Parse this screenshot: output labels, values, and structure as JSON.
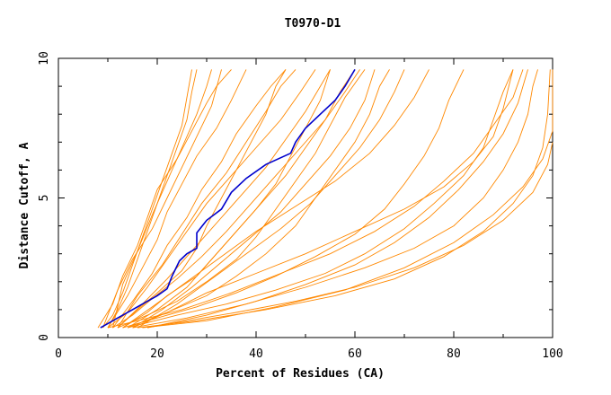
{
  "chart_data": {
    "type": "line",
    "title": "T0970-D1",
    "xlabel": "Percent of Residues (CA)",
    "ylabel": "Distance Cutoff, A",
    "xlim": [
      0,
      100
    ],
    "ylim": [
      0,
      10
    ],
    "x_ticks": [
      "0",
      "20",
      "40",
      "60",
      "80",
      "100"
    ],
    "y_ticks": [
      "0",
      "5",
      "10"
    ],
    "grid": false,
    "colors": {
      "highlight": "#0000cc",
      "others": "#ff8800"
    },
    "highlight": {
      "x": [
        8.5,
        12,
        15,
        18,
        20,
        22,
        23,
        24.5,
        26,
        28,
        28,
        30,
        33,
        35,
        38,
        42,
        47,
        48,
        50,
        53,
        56,
        58,
        60
      ],
      "y": [
        0.35,
        0.7,
        1.0,
        1.3,
        1.5,
        1.75,
        2.2,
        2.75,
        3.0,
        3.2,
        3.75,
        4.2,
        4.6,
        5.2,
        5.7,
        6.2,
        6.6,
        7.0,
        7.5,
        8.0,
        8.5,
        9.0,
        9.6
      ]
    },
    "others": [
      [
        [
          9,
          0.35
        ],
        [
          11,
          0.8
        ],
        [
          13,
          1.6
        ],
        [
          15,
          2.6
        ],
        [
          17,
          3.6
        ],
        [
          19,
          4.6
        ],
        [
          21,
          5.6
        ],
        [
          23,
          6.6
        ],
        [
          25,
          7.6
        ],
        [
          26,
          8.6
        ],
        [
          27,
          9.6
        ]
      ],
      [
        [
          10,
          0.35
        ],
        [
          12,
          1.0
        ],
        [
          14,
          1.8
        ],
        [
          16,
          2.8
        ],
        [
          18,
          3.8
        ],
        [
          20,
          4.8
        ],
        [
          22,
          5.8
        ],
        [
          24,
          6.8
        ],
        [
          26,
          7.8
        ],
        [
          27,
          8.8
        ],
        [
          28,
          9.6
        ]
      ],
      [
        [
          8,
          0.35
        ],
        [
          11,
          1.2
        ],
        [
          13,
          2.2
        ],
        [
          16,
          3.3
        ],
        [
          18,
          4.3
        ],
        [
          20,
          5.3
        ],
        [
          24,
          6.4
        ],
        [
          27,
          7.4
        ],
        [
          30,
          8.4
        ],
        [
          32,
          9.0
        ],
        [
          35,
          9.6
        ]
      ],
      [
        [
          10,
          0.35
        ],
        [
          14,
          1.5
        ],
        [
          17,
          2.5
        ],
        [
          20,
          3.5
        ],
        [
          22,
          4.5
        ],
        [
          25,
          5.5
        ],
        [
          28,
          6.5
        ],
        [
          32,
          7.5
        ],
        [
          35,
          8.5
        ],
        [
          38,
          9.6
        ]
      ],
      [
        [
          12,
          0.35
        ],
        [
          16,
          1.0
        ],
        [
          20,
          1.6
        ],
        [
          25,
          2.4
        ],
        [
          28,
          3.2
        ],
        [
          30,
          4.0
        ],
        [
          33,
          5.0
        ],
        [
          36,
          6.0
        ],
        [
          39,
          7.0
        ],
        [
          42,
          8.0
        ],
        [
          44,
          9.0
        ],
        [
          46,
          9.6
        ]
      ],
      [
        [
          13,
          0.35
        ],
        [
          18,
          0.9
        ],
        [
          22,
          1.5
        ],
        [
          28,
          2.2
        ],
        [
          32,
          3.0
        ],
        [
          36,
          3.8
        ],
        [
          40,
          4.6
        ],
        [
          44,
          5.5
        ],
        [
          47,
          6.5
        ],
        [
          50,
          7.5
        ],
        [
          53,
          8.5
        ],
        [
          55,
          9.6
        ]
      ],
      [
        [
          11,
          0.35
        ],
        [
          15,
          1.3
        ],
        [
          19,
          2.3
        ],
        [
          22,
          3.3
        ],
        [
          26,
          4.3
        ],
        [
          29,
          5.3
        ],
        [
          33,
          6.3
        ],
        [
          36,
          7.3
        ],
        [
          40,
          8.3
        ],
        [
          43,
          9.0
        ],
        [
          46,
          9.6
        ]
      ],
      [
        [
          14,
          0.35
        ],
        [
          20,
          1.0
        ],
        [
          26,
          1.8
        ],
        [
          30,
          2.6
        ],
        [
          34,
          3.4
        ],
        [
          38,
          4.2
        ],
        [
          42,
          5.0
        ],
        [
          46,
          5.8
        ],
        [
          50,
          6.8
        ],
        [
          54,
          7.8
        ],
        [
          57,
          8.8
        ],
        [
          60,
          9.6
        ]
      ],
      [
        [
          12,
          0.35
        ],
        [
          18,
          0.8
        ],
        [
          24,
          1.3
        ],
        [
          30,
          2.0
        ],
        [
          36,
          2.8
        ],
        [
          40,
          3.6
        ],
        [
          44,
          4.6
        ],
        [
          48,
          5.6
        ],
        [
          52,
          6.6
        ],
        [
          55,
          7.6
        ],
        [
          58,
          8.6
        ],
        [
          62,
          9.6
        ]
      ],
      [
        [
          15,
          0.35
        ],
        [
          22,
          0.9
        ],
        [
          30,
          1.5
        ],
        [
          36,
          2.2
        ],
        [
          42,
          3.0
        ],
        [
          48,
          4.0
        ],
        [
          52,
          5.0
        ],
        [
          56,
          6.0
        ],
        [
          60,
          7.0
        ],
        [
          63,
          8.0
        ],
        [
          65,
          9.0
        ],
        [
          67,
          9.6
        ]
      ],
      [
        [
          13,
          0.35
        ],
        [
          20,
          0.7
        ],
        [
          28,
          1.1
        ],
        [
          36,
          1.6
        ],
        [
          44,
          2.2
        ],
        [
          52,
          2.9
        ],
        [
          60,
          3.7
        ],
        [
          66,
          4.6
        ],
        [
          70,
          5.5
        ],
        [
          74,
          6.5
        ],
        [
          77,
          7.5
        ],
        [
          79,
          8.5
        ],
        [
          82,
          9.6
        ]
      ],
      [
        [
          14,
          0.35
        ],
        [
          24,
          0.8
        ],
        [
          34,
          1.2
        ],
        [
          44,
          1.7
        ],
        [
          54,
          2.3
        ],
        [
          62,
          3.0
        ],
        [
          70,
          3.9
        ],
        [
          76,
          4.8
        ],
        [
          82,
          5.8
        ],
        [
          86,
          6.8
        ],
        [
          88,
          7.8
        ],
        [
          90,
          8.8
        ],
        [
          92,
          9.6
        ]
      ],
      [
        [
          15,
          0.35
        ],
        [
          26,
          0.7
        ],
        [
          38,
          1.2
        ],
        [
          50,
          1.8
        ],
        [
          62,
          2.5
        ],
        [
          72,
          3.2
        ],
        [
          80,
          4.0
        ],
        [
          86,
          5.0
        ],
        [
          90,
          6.0
        ],
        [
          93,
          7.0
        ],
        [
          95,
          8.0
        ],
        [
          96,
          9.0
        ],
        [
          97,
          9.6
        ]
      ],
      [
        [
          16,
          0.35
        ],
        [
          28,
          0.6
        ],
        [
          42,
          1.0
        ],
        [
          56,
          1.5
        ],
        [
          68,
          2.1
        ],
        [
          78,
          2.9
        ],
        [
          86,
          3.8
        ],
        [
          92,
          4.8
        ],
        [
          96,
          5.8
        ],
        [
          98,
          6.8
        ],
        [
          99,
          8.0
        ],
        [
          99.5,
          9.6
        ]
      ],
      [
        [
          17,
          0.35
        ],
        [
          30,
          0.6
        ],
        [
          44,
          1.1
        ],
        [
          58,
          1.7
        ],
        [
          70,
          2.5
        ],
        [
          80,
          3.4
        ],
        [
          88,
          4.4
        ],
        [
          94,
          5.4
        ],
        [
          98,
          6.4
        ],
        [
          100,
          7.4
        ],
        [
          100,
          9.6
        ]
      ],
      [
        [
          14,
          0.35
        ],
        [
          22,
          0.9
        ],
        [
          30,
          1.6
        ],
        [
          40,
          2.3
        ],
        [
          50,
          3.0
        ],
        [
          60,
          3.8
        ],
        [
          70,
          4.6
        ],
        [
          78,
          5.4
        ],
        [
          84,
          6.3
        ],
        [
          88,
          7.2
        ],
        [
          90,
          8.2
        ],
        [
          92,
          9.6
        ]
      ],
      [
        [
          13,
          0.35
        ],
        [
          19,
          1.1
        ],
        [
          26,
          2.0
        ],
        [
          33,
          2.9
        ],
        [
          40,
          3.8
        ],
        [
          48,
          4.7
        ],
        [
          56,
          5.6
        ],
        [
          63,
          6.6
        ],
        [
          68,
          7.6
        ],
        [
          72,
          8.6
        ],
        [
          75,
          9.6
        ]
      ],
      [
        [
          9,
          0.35
        ],
        [
          12,
          1.7
        ],
        [
          15,
          2.8
        ],
        [
          19,
          3.9
        ],
        [
          22,
          5.0
        ],
        [
          25,
          6.1
        ],
        [
          28,
          7.2
        ],
        [
          31,
          8.3
        ],
        [
          33,
          9.6
        ]
      ],
      [
        [
          11,
          0.35
        ],
        [
          13,
          1.9
        ],
        [
          16,
          3.1
        ],
        [
          19,
          4.4
        ],
        [
          22,
          5.6
        ],
        [
          25,
          6.8
        ],
        [
          28,
          8.0
        ],
        [
          30,
          9.0
        ],
        [
          31,
          9.6
        ]
      ],
      [
        [
          12,
          0.35
        ],
        [
          16,
          1.5
        ],
        [
          21,
          2.6
        ],
        [
          25,
          3.7
        ],
        [
          29,
          4.8
        ],
        [
          34,
          5.9
        ],
        [
          38,
          7.0
        ],
        [
          42,
          8.1
        ],
        [
          45,
          9.0
        ],
        [
          48,
          9.6
        ]
      ],
      [
        [
          16,
          0.35
        ],
        [
          24,
          1.2
        ],
        [
          31,
          2.1
        ],
        [
          38,
          3.0
        ],
        [
          45,
          3.9
        ],
        [
          51,
          4.8
        ],
        [
          56,
          5.8
        ],
        [
          61,
          6.8
        ],
        [
          65,
          7.8
        ],
        [
          68,
          8.8
        ],
        [
          70,
          9.6
        ]
      ],
      [
        [
          10,
          0.35
        ],
        [
          16,
          0.6
        ],
        [
          25,
          1.0
        ],
        [
          35,
          1.6
        ],
        [
          45,
          2.3
        ],
        [
          55,
          3.0
        ],
        [
          64,
          3.8
        ],
        [
          72,
          4.7
        ],
        [
          78,
          5.6
        ],
        [
          84,
          6.6
        ],
        [
          88,
          7.6
        ],
        [
          92,
          8.6
        ],
        [
          94,
          9.6
        ]
      ],
      [
        [
          18,
          0.35
        ],
        [
          30,
          0.8
        ],
        [
          40,
          1.3
        ],
        [
          50,
          1.9
        ],
        [
          60,
          2.6
        ],
        [
          68,
          3.4
        ],
        [
          75,
          4.3
        ],
        [
          81,
          5.3
        ],
        [
          86,
          6.3
        ],
        [
          90,
          7.3
        ],
        [
          93,
          8.4
        ],
        [
          95,
          9.6
        ]
      ],
      [
        [
          12,
          0.35
        ],
        [
          17,
          1.2
        ],
        [
          22,
          2.1
        ],
        [
          27,
          3.1
        ],
        [
          32,
          4.1
        ],
        [
          37,
          5.1
        ],
        [
          42,
          6.1
        ],
        [
          46,
          7.1
        ],
        [
          50,
          8.1
        ],
        [
          53,
          9.0
        ],
        [
          55,
          9.6
        ]
      ],
      [
        [
          10,
          0.35
        ],
        [
          14,
          0.9
        ],
        [
          18,
          1.8
        ],
        [
          22,
          2.8
        ],
        [
          26,
          3.8
        ],
        [
          30,
          4.8
        ],
        [
          35,
          5.8
        ],
        [
          40,
          6.8
        ],
        [
          45,
          7.8
        ],
        [
          49,
          8.8
        ],
        [
          52,
          9.6
        ]
      ],
      [
        [
          15,
          0.35
        ],
        [
          21,
          1.0
        ],
        [
          27,
          1.8
        ],
        [
          33,
          2.7
        ],
        [
          39,
          3.6
        ],
        [
          45,
          4.5
        ],
        [
          50,
          5.5
        ],
        [
          55,
          6.5
        ],
        [
          59,
          7.5
        ],
        [
          62,
          8.5
        ],
        [
          64,
          9.6
        ]
      ],
      [
        [
          11,
          0.35
        ],
        [
          15,
          0.8
        ],
        [
          19,
          1.4
        ],
        [
          24,
          2.1
        ],
        [
          29,
          2.9
        ],
        [
          34,
          3.8
        ],
        [
          39,
          4.8
        ],
        [
          44,
          5.8
        ],
        [
          49,
          6.8
        ],
        [
          54,
          7.8
        ],
        [
          58,
          8.8
        ],
        [
          61,
          9.6
        ]
      ],
      [
        [
          18,
          0.35
        ],
        [
          26,
          0.6
        ],
        [
          36,
          0.9
        ],
        [
          48,
          1.3
        ],
        [
          60,
          1.8
        ],
        [
          72,
          2.5
        ],
        [
          82,
          3.3
        ],
        [
          90,
          4.2
        ],
        [
          96,
          5.2
        ],
        [
          99,
          6.2
        ],
        [
          100,
          7.0
        ]
      ]
    ]
  }
}
